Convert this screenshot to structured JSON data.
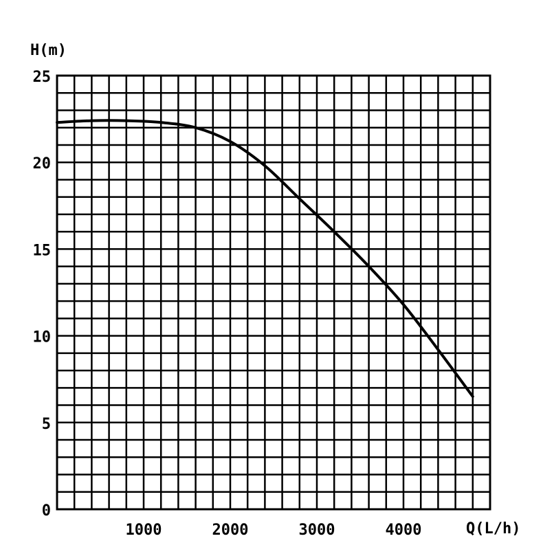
{
  "chart_data": {
    "type": "line",
    "title": "",
    "xlabel": "Q(L/h)",
    "ylabel": "H(m)",
    "xlim": [
      0,
      5000
    ],
    "ylim": [
      0,
      25
    ],
    "x_ticks": [
      {
        "value": 1000,
        "label": "1000"
      },
      {
        "value": 2000,
        "label": "2000"
      },
      {
        "value": 3000,
        "label": "3000"
      },
      {
        "value": 4000,
        "label": "4000"
      }
    ],
    "y_ticks": [
      {
        "value": 0,
        "label": "0"
      },
      {
        "value": 5,
        "label": "5"
      },
      {
        "value": 10,
        "label": "10"
      },
      {
        "value": 15,
        "label": "15"
      },
      {
        "value": 20,
        "label": "20"
      },
      {
        "value": 25,
        "label": "25"
      }
    ],
    "grid": true,
    "x_minor_step": 200,
    "y_minor_step": 1,
    "series": [
      {
        "values": [
          {
            "x": 0,
            "y": 22.3
          },
          {
            "x": 400,
            "y": 22.4
          },
          {
            "x": 800,
            "y": 22.4
          },
          {
            "x": 1200,
            "y": 22.3
          },
          {
            "x": 1600,
            "y": 22.0
          },
          {
            "x": 2000,
            "y": 21.2
          },
          {
            "x": 2400,
            "y": 19.8
          },
          {
            "x": 2800,
            "y": 17.9
          },
          {
            "x": 3200,
            "y": 16.0
          },
          {
            "x": 3600,
            "y": 14.0
          },
          {
            "x": 4000,
            "y": 11.8
          },
          {
            "x": 4400,
            "y": 9.2
          },
          {
            "x": 4800,
            "y": 6.5
          }
        ],
        "color": "#000000"
      }
    ]
  }
}
